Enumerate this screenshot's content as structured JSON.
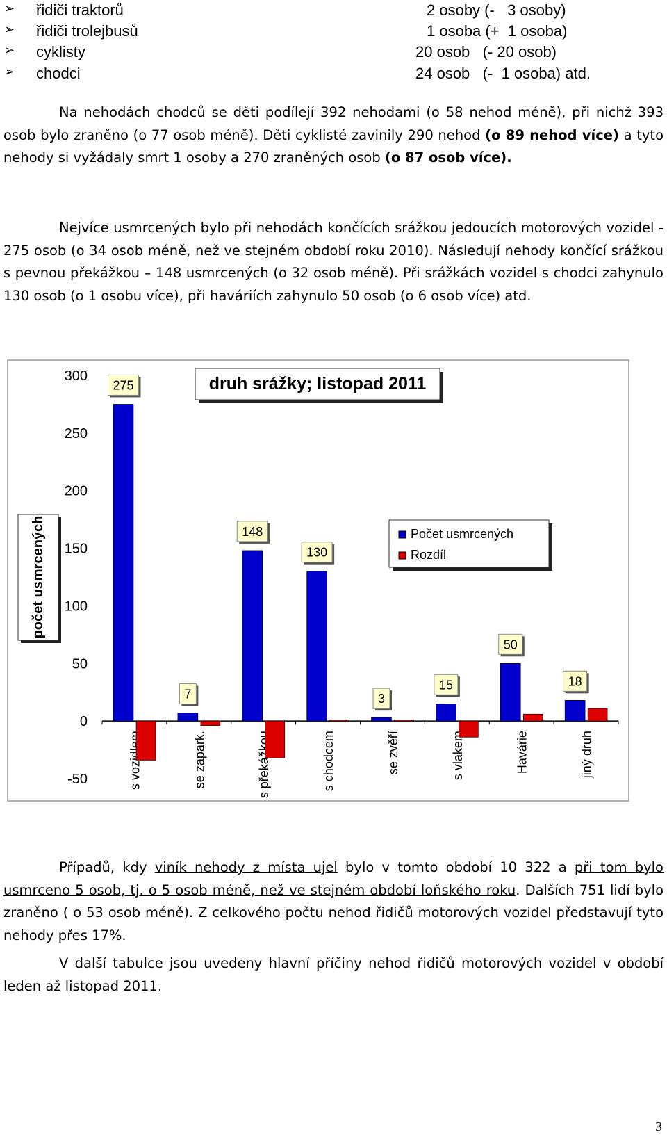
{
  "bullets": [
    {
      "label": "řidiči traktorů",
      "detail": "2 osoby (-   3 osoby)"
    },
    {
      "label": "řidiči trolejbusů",
      "detail": "1 osoba (+  1 osoba)"
    },
    {
      "label": "cyklisty",
      "detail": "20 osob   (- 20 osob)"
    },
    {
      "label": "chodci",
      "detail": "24 osob   (-  1 osoba) atd."
    }
  ],
  "paragraphs": [
    [
      "Na nehodách chodců se děti podílejí 392 nehodami (o 58 nehod méně), při nichž 393 osob bylo zraněno (o 77 osob méně). Děti cyklisté zavinily 290 nehod ",
      "(o 89 nehod více)",
      " a tyto nehody si vyžádaly smrt 1 osoby a 270 zraněných osob ",
      "(o 87 osob více)."
    ],
    [
      "Nejvíce usmrcených bylo při nehodách končících srážkou jedoucích motorových vozidel - 275 osob (o 34 osob méně, než ve stejném období roku 2010). Následují nehody končící srážkou s pevnou překážkou – 148 usmrcených (o 32 osob méně). Při srážkách vozidel s chodci zahynulo 130 osob (o 1 osobu více), při haváriích zahynulo 50 osob (o 6 osob více) atd."
    ],
    [
      "Případů, kdy ",
      "viník nehody z místa ujel",
      " bylo v tomto období 10 322 a ",
      "při tom bylo usmrceno 5 osob, tj. o 5 osob méně, než ve stejném období loňského roku",
      ". Dalších 751 lidí bylo zraněno ( o 53 osob méně). Z celkového počtu nehod řidičů motorových vozidel představují tyto nehody přes 17%."
    ],
    [
      "V další tabulce jsou uvedeny hlavní příčiny nehod řidičů motorových vozidel v období leden až listopad 2011."
    ]
  ],
  "chart_data": {
    "type": "bar",
    "title": "druh srážky; listopad 2011",
    "y_label": "počet usmrcených",
    "categories": [
      "s vozidlem",
      "se zapark.",
      "s překážkou",
      "s chodcem",
      "se zvěří",
      "s vlakem",
      "Havárie",
      "jiný druh"
    ],
    "series": [
      {
        "name": "Počet usmrcených",
        "color": "#0000cc",
        "values": [
          275,
          7,
          148,
          130,
          3,
          15,
          50,
          18
        ],
        "show_labels": true
      },
      {
        "name": "Rozdíl",
        "color": "#dd0000",
        "values": [
          -34,
          -4,
          -32,
          1,
          1,
          -14,
          6,
          11
        ],
        "show_labels": false
      }
    ],
    "ylim": [
      -50,
      300
    ],
    "yticks": [
      -50,
      0,
      50,
      100,
      150,
      200,
      250,
      300
    ],
    "grid": false
  },
  "page_number": "3"
}
